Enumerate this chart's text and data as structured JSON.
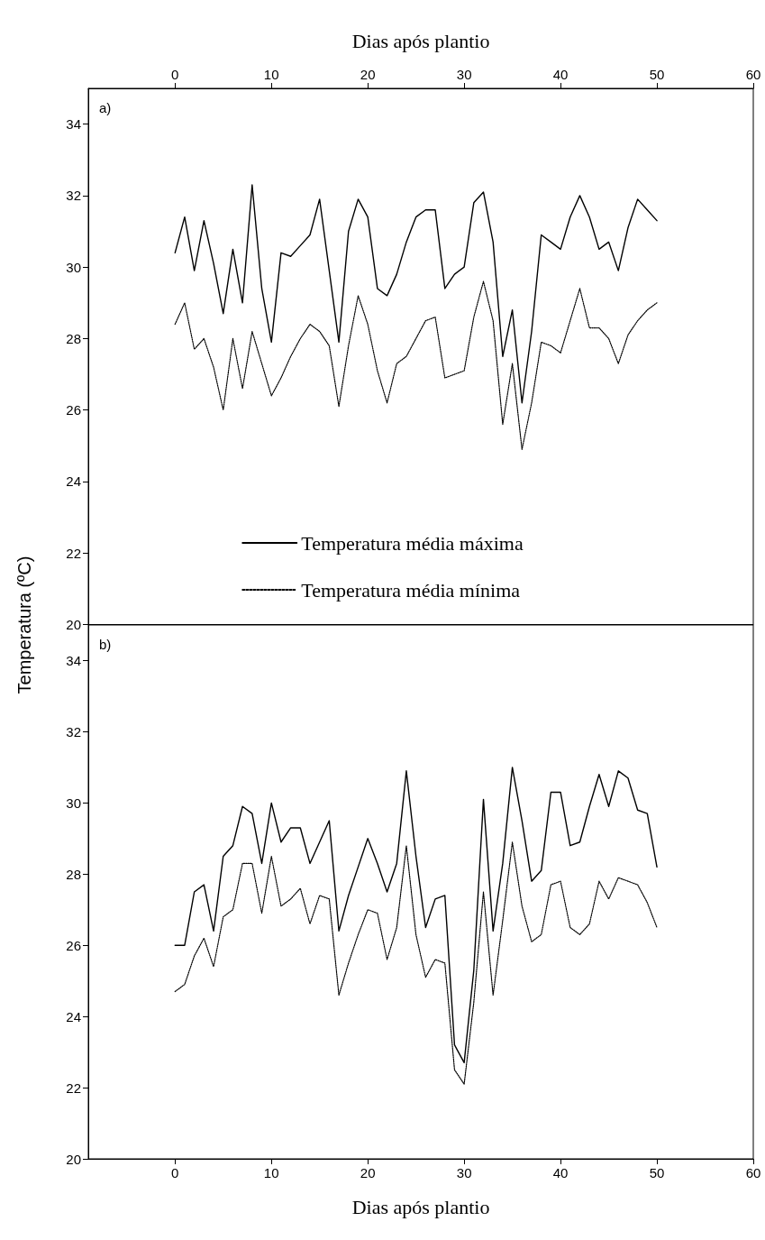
{
  "chart_data": [
    {
      "type": "line",
      "x2label": "Dias após plantio",
      "ylabel": "Temperatura (ºC)",
      "annotations": [
        "a)"
      ],
      "x2lim": [
        -9,
        60
      ],
      "x2ticks": [
        0,
        10,
        20,
        30,
        40,
        50,
        60
      ],
      "xlim": [
        -9,
        60
      ],
      "xticks": [
        0,
        10,
        20,
        30,
        40,
        50,
        60
      ],
      "tick_labels": "y",
      "ylim": [
        20,
        35
      ],
      "yticks": [
        20,
        22,
        24,
        26,
        28,
        30,
        32,
        34
      ],
      "legend": "bottom",
      "grid": false,
      "marker": "none",
      "x": [
        0,
        1,
        2,
        3,
        4,
        5,
        6,
        7,
        8,
        9,
        10,
        11,
        12,
        13,
        14,
        15,
        16,
        17,
        18,
        19,
        20,
        21,
        22,
        23,
        24,
        25,
        26,
        27,
        28,
        29,
        30,
        31,
        32,
        33,
        34,
        35,
        36,
        37,
        38,
        39,
        40,
        41,
        42,
        43,
        44,
        45,
        46,
        47,
        48,
        49,
        50
      ],
      "series": [
        {
          "name": "Temperatura média máxima",
          "color": "#000000",
          "line_style": "solid",
          "values": [
            30.4,
            31.4,
            29.9,
            31.3,
            30.1,
            28.7,
            30.5,
            29.0,
            32.3,
            29.4,
            27.9,
            30.4,
            30.3,
            30.6,
            30.9,
            31.9,
            29.9,
            27.9,
            31.0,
            31.9,
            31.4,
            29.4,
            29.2,
            29.8,
            30.7,
            31.4,
            31.6,
            31.6,
            29.4,
            29.8,
            30.0,
            31.8,
            32.1,
            30.7,
            27.5,
            28.8,
            26.2,
            28.2,
            30.9,
            30.7,
            30.5,
            31.4,
            32.0,
            31.4,
            30.5,
            30.7,
            29.9,
            31.1,
            31.9,
            31.6,
            31.3
          ]
        },
        {
          "name": "Temperatura média mínima",
          "color": "#000000",
          "line_style": "dotted",
          "values": [
            28.4,
            29.0,
            27.7,
            28.0,
            27.2,
            26.0,
            28.0,
            26.6,
            28.2,
            27.3,
            26.4,
            26.9,
            27.5,
            28.0,
            28.4,
            28.2,
            27.8,
            26.1,
            27.8,
            29.2,
            28.4,
            27.1,
            26.2,
            27.3,
            27.5,
            28.0,
            28.5,
            28.6,
            26.9,
            27.0,
            27.1,
            28.6,
            29.6,
            28.5,
            25.6,
            27.3,
            24.9,
            26.2,
            27.9,
            27.8,
            27.6,
            28.5,
            29.4,
            28.3,
            28.3,
            28.0,
            27.3,
            28.1,
            28.5,
            28.8,
            29.0
          ]
        }
      ]
    },
    {
      "type": "line",
      "xlabel": "Dias após plantio",
      "annotations": [
        "b)"
      ],
      "xlim": [
        -9,
        60
      ],
      "xticks": [
        0,
        10,
        20,
        30,
        40,
        50,
        60
      ],
      "ylim": [
        20,
        35
      ],
      "yticks": [
        20,
        22,
        24,
        26,
        28,
        30,
        32,
        34
      ],
      "grid": false,
      "marker": "none",
      "x": [
        0,
        1,
        2,
        3,
        4,
        5,
        6,
        7,
        8,
        9,
        10,
        11,
        12,
        13,
        14,
        15,
        16,
        17,
        18,
        19,
        20,
        21,
        22,
        23,
        24,
        25,
        26,
        27,
        28,
        29,
        30,
        31,
        32,
        33,
        34,
        35,
        36,
        37,
        38,
        39,
        40,
        41,
        42,
        43,
        44,
        45,
        46,
        47,
        48,
        49,
        50
      ],
      "series": [
        {
          "color": "#000000",
          "line_style": "solid",
          "values": [
            26.0,
            26.0,
            27.5,
            27.7,
            26.4,
            28.5,
            28.8,
            29.9,
            29.7,
            28.3,
            30.0,
            28.9,
            29.3,
            29.3,
            28.3,
            28.9,
            29.5,
            26.4,
            27.4,
            28.2,
            29.0,
            28.3,
            27.5,
            28.3,
            30.9,
            28.5,
            26.5,
            27.3,
            27.4,
            23.2,
            22.7,
            25.3,
            30.1,
            26.4,
            28.3,
            31.0,
            29.5,
            27.8,
            28.1,
            30.3,
            30.3,
            28.8,
            28.9,
            29.9,
            30.8,
            29.9,
            30.9,
            30.7,
            29.8,
            29.7,
            28.2
          ]
        },
        {
          "color": "#000000",
          "line_style": "dotted",
          "values": [
            24.7,
            24.9,
            25.7,
            26.2,
            25.4,
            26.8,
            27.0,
            28.3,
            28.3,
            26.9,
            28.5,
            27.1,
            27.3,
            27.6,
            26.6,
            27.4,
            27.3,
            24.6,
            25.5,
            26.3,
            27.0,
            26.9,
            25.6,
            26.5,
            28.8,
            26.3,
            25.1,
            25.6,
            25.5,
            22.5,
            22.1,
            24.4,
            27.5,
            24.6,
            26.7,
            28.9,
            27.1,
            26.1,
            26.3,
            27.7,
            27.8,
            26.5,
            26.3,
            26.6,
            27.8,
            27.3,
            27.9,
            27.8,
            27.7,
            27.2,
            26.5
          ]
        }
      ]
    }
  ]
}
